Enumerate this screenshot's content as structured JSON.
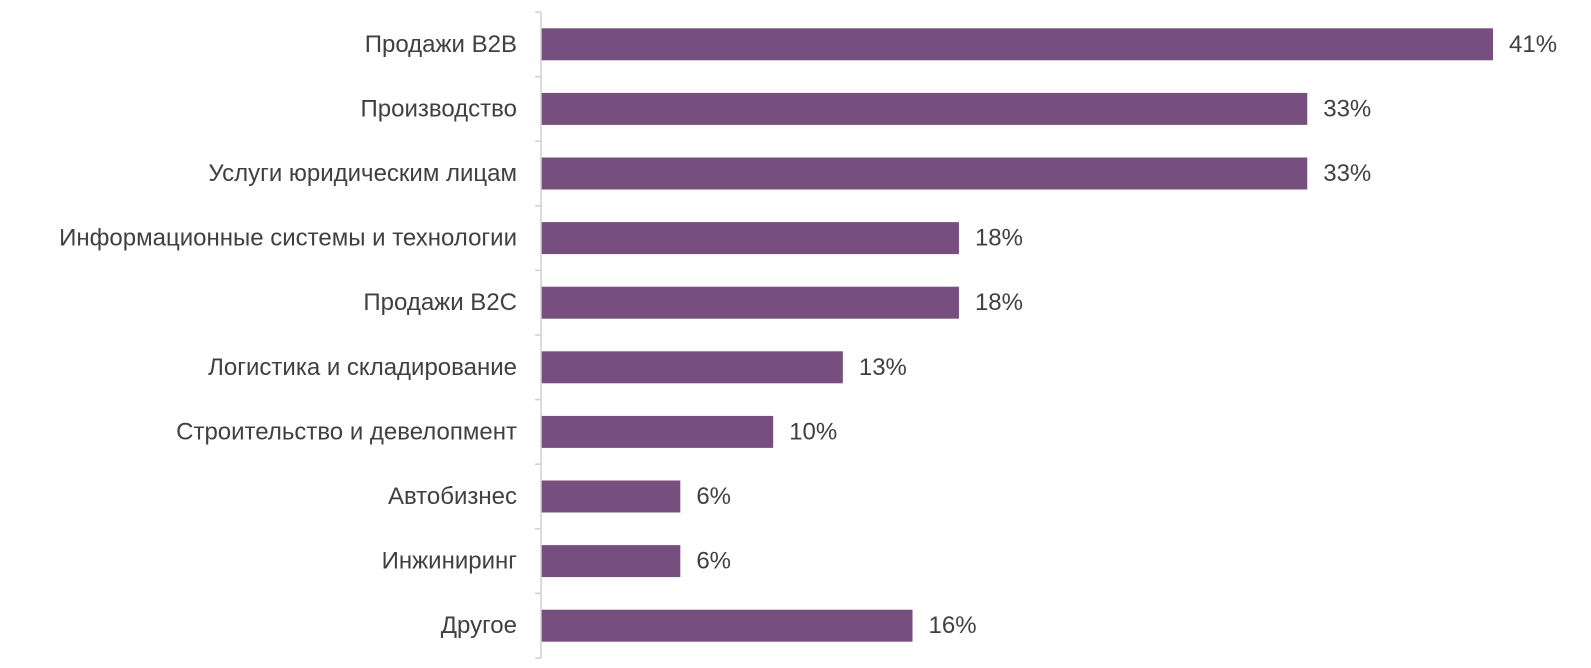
{
  "chart_data": {
    "type": "bar",
    "orientation": "horizontal",
    "categories": [
      "Продажи B2B",
      "Производство",
      "Услуги юридическим лицам",
      "Информационные системы и технологии",
      "Продажи B2C",
      "Логистика и складирование",
      "Строительство и девелопмент",
      "Автобизнес",
      "Инжиниринг",
      "Другое"
    ],
    "values": [
      41,
      33,
      33,
      18,
      18,
      13,
      10,
      6,
      6,
      16
    ],
    "value_labels": [
      "41%",
      "33%",
      "33%",
      "18%",
      "18%",
      "13%",
      "10%",
      "6%",
      "6%",
      "16%"
    ],
    "unit": "%",
    "xlim": [
      0,
      41
    ],
    "grid": false,
    "legend": "none",
    "bar_color": "#774F7E",
    "text_color": "#404040",
    "axis_color": "#D0D0D0"
  }
}
